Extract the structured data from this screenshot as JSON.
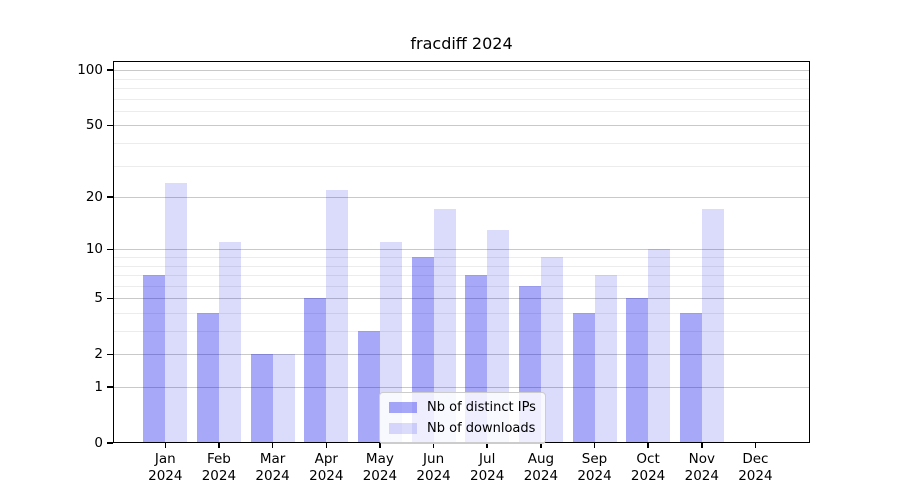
{
  "chart_data": {
    "type": "bar",
    "title": "fracdiff 2024",
    "categories": [
      "Jan",
      "Feb",
      "Mar",
      "Apr",
      "May",
      "Jun",
      "Jul",
      "Aug",
      "Sep",
      "Oct",
      "Nov",
      "Dec"
    ],
    "category_year": "2024",
    "series": [
      {
        "name": "Nb of distinct IPs",
        "color": "rgba(0,0,235,0.34)",
        "values": [
          7,
          4,
          2,
          5,
          3,
          9,
          7,
          6,
          4,
          5,
          4,
          0
        ]
      },
      {
        "name": "Nb of downloads",
        "color": "rgba(0,0,235,0.14)",
        "values": [
          24,
          11,
          2,
          22,
          11,
          17,
          13,
          9,
          7,
          10,
          17,
          0
        ]
      }
    ],
    "xlabel": "",
    "ylabel": "",
    "yscale": "log1p",
    "ylim": [
      0,
      112
    ],
    "y_major_ticks": [
      0,
      1,
      2,
      5,
      10,
      20,
      50,
      100
    ],
    "y_minor_gridlines": [
      3,
      4,
      6,
      7,
      8,
      9,
      30,
      40,
      60,
      70,
      80,
      90
    ],
    "grid": true,
    "legend_position": "lower center"
  }
}
